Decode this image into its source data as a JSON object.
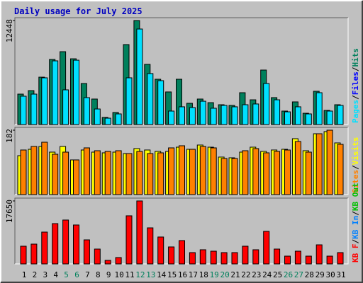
{
  "legend_separator": "/",
  "chart_data": [
    {
      "type": "bar",
      "title": "Daily usage for July 2025",
      "ylim": [
        0,
        12448
      ],
      "yticks": [
        12448
      ],
      "series": [
        {
          "name": "Hits",
          "color": "#00805c",
          "values": [
            3640,
            4060,
            5670,
            7790,
            8720,
            7870,
            4910,
            3050,
            850,
            1440,
            9570,
            12448,
            7200,
            5420,
            3900,
            5420,
            2540,
            3050,
            2620,
            2370,
            2290,
            3810,
            2960,
            6520,
            3220,
            1610,
            2710,
            1350,
            3980,
            1690,
            2370
          ]
        },
        {
          "name": "Files",
          "color": "#0000ff",
          "values": [
            null,
            null,
            null,
            null,
            null,
            null,
            null,
            null,
            null,
            null,
            null,
            null,
            null,
            null,
            null,
            null,
            null,
            null,
            null,
            null,
            null,
            null,
            null,
            null,
            null,
            null,
            null,
            null,
            null,
            null,
            null
          ]
        },
        {
          "name": "Pages",
          "color": "#00e0ff",
          "values": [
            3390,
            3640,
            5590,
            7620,
            4150,
            7700,
            3220,
            1860,
            760,
            1270,
            5590,
            11430,
            6100,
            5250,
            1610,
            2120,
            2030,
            2790,
            1950,
            2290,
            2120,
            2370,
            2460,
            4910,
            2960,
            1520,
            2120,
            1270,
            3810,
            1610,
            2290
          ]
        }
      ]
    },
    {
      "type": "bar",
      "ylim": [
        0,
        182
      ],
      "yticks": [
        182
      ],
      "series": [
        {
          "name": "Visits",
          "color": "#ffff00",
          "values": [
            110,
            128,
            136,
            120,
            136,
            98,
            126,
            120,
            118,
            120,
            116,
            130,
            126,
            122,
            122,
            134,
            128,
            140,
            134,
            106,
            104,
            120,
            134,
            122,
            126,
            128,
            158,
            124,
            172,
            178,
            146
          ]
        },
        {
          "name": "Sites",
          "color": "#ff8000",
          "values": [
            126,
            136,
            148,
            114,
            120,
            98,
            132,
            124,
            122,
            124,
            116,
            122,
            116,
            118,
            132,
            138,
            128,
            136,
            132,
            102,
            102,
            124,
            130,
            118,
            122,
            126,
            150,
            120,
            172,
            182,
            142
          ]
        }
      ]
    },
    {
      "type": "bar",
      "ylim": [
        0,
        17650
      ],
      "yticks": [
        17650
      ],
      "categories": [
        "1",
        "2",
        "3",
        "4",
        "5",
        "6",
        "7",
        "8",
        "9",
        "10",
        "11",
        "12",
        "13",
        "14",
        "15",
        "16",
        "17",
        "18",
        "19",
        "20",
        "21",
        "22",
        "23",
        "24",
        "25",
        "26",
        "27",
        "28",
        "29",
        "30",
        "31"
      ],
      "category_colors": [
        "#000000",
        "#000000",
        "#000000",
        "#000000",
        "#00805c",
        "#00805c",
        "#000000",
        "#000000",
        "#000000",
        "#000000",
        "#000000",
        "#00805c",
        "#00805c",
        "#000000",
        "#000000",
        "#000000",
        "#000000",
        "#000000",
        "#00805c",
        "#00805c",
        "#000000",
        "#000000",
        "#000000",
        "#000000",
        "#000000",
        "#00805c",
        "#00805c",
        "#000000",
        "#000000",
        "#000000",
        "#000000"
      ],
      "series": [
        {
          "name": "KB Out",
          "color": "#00c000",
          "values": [
            null,
            null,
            null,
            null,
            null,
            null,
            null,
            null,
            null,
            null,
            null,
            null,
            null,
            null,
            null,
            null,
            null,
            null,
            null,
            null,
            null,
            null,
            null,
            null,
            null,
            null,
            null,
            null,
            null,
            null,
            null
          ]
        },
        {
          "name": "KB In",
          "color": "#0080ff",
          "values": [
            null,
            null,
            null,
            null,
            null,
            null,
            null,
            null,
            null,
            null,
            null,
            null,
            null,
            null,
            null,
            null,
            null,
            null,
            null,
            null,
            null,
            null,
            null,
            null,
            null,
            null,
            null,
            null,
            null,
            null,
            null
          ]
        },
        {
          "name": "KB F",
          "color": "#ff0000",
          "values": [
            4960,
            5550,
            8920,
            11300,
            12300,
            10910,
            6740,
            4160,
            990,
            1780,
            13490,
            17650,
            10110,
            7540,
            4760,
            6540,
            3170,
            3970,
            3570,
            3170,
            3170,
            4960,
            3970,
            9120,
            4160,
            2180,
            3570,
            2180,
            5350,
            2180,
            3170
          ]
        }
      ]
    }
  ]
}
